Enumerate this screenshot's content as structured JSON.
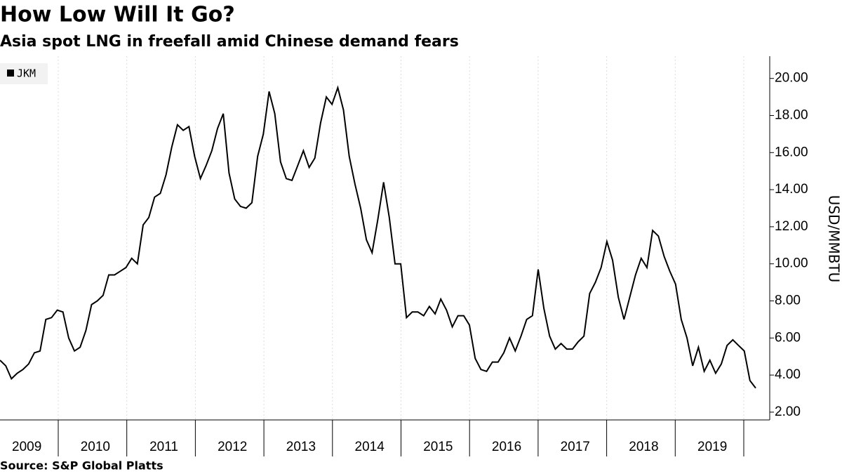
{
  "chart_data": {
    "type": "line",
    "title": "How Low Will It Go?",
    "subtitle": "Asia spot LNG in freefall amid Chinese demand fears",
    "source": "Source: S&P Global Platts",
    "y_label": "USD/MMBTU",
    "x_labels": [
      "2009",
      "2010",
      "2011",
      "2012",
      "2013",
      "2014",
      "2015",
      "2016",
      "2017",
      "2018",
      "2019"
    ],
    "series": [
      {
        "name": "JKM",
        "color": "#000000",
        "values": [
          4.8,
          4.5,
          3.8,
          4.1,
          4.3,
          4.6,
          5.2,
          5.3,
          7.0,
          7.1,
          7.5,
          7.4,
          6.0,
          5.3,
          5.5,
          6.4,
          7.8,
          8.0,
          8.3,
          9.4,
          9.4,
          9.6,
          9.8,
          10.3,
          10.0,
          12.1,
          12.5,
          13.6,
          13.8,
          14.8,
          16.3,
          17.5,
          17.2,
          17.4,
          15.8,
          14.6,
          15.3,
          16.1,
          17.3,
          18.1,
          14.9,
          13.5,
          13.1,
          13.0,
          13.3,
          15.8,
          17.0,
          19.3,
          18.1,
          15.5,
          14.6,
          14.5,
          15.3,
          16.1,
          15.2,
          15.7,
          17.6,
          19.0,
          18.6,
          19.5,
          18.3,
          15.8,
          14.3,
          13.0,
          11.3,
          10.6,
          12.4,
          14.4,
          12.5,
          10.0,
          10.0,
          7.1,
          7.4,
          7.4,
          7.2,
          7.7,
          7.3,
          8.1,
          7.5,
          6.6,
          7.2,
          7.2,
          6.7,
          4.9,
          4.3,
          4.2,
          4.7,
          4.7,
          5.2,
          6.0,
          5.3,
          6.1,
          7.0,
          7.2,
          9.7,
          7.6,
          6.1,
          5.4,
          5.7,
          5.4,
          5.4,
          5.8,
          6.1,
          8.4,
          9.0,
          9.8,
          11.2,
          10.2,
          8.2,
          7.0,
          8.2,
          9.4,
          10.3,
          9.8,
          11.8,
          11.5,
          10.4,
          9.6,
          8.9,
          7.0,
          6.0,
          4.5,
          5.5,
          4.2,
          4.8,
          4.1,
          4.6,
          5.6,
          5.9,
          5.6,
          5.3,
          3.7,
          3.3
        ]
      }
    ],
    "ylim": [
      1.58,
      21.2
    ],
    "yticks": [
      {
        "value": 2,
        "label": "2.00"
      },
      {
        "value": 4,
        "label": "4.00"
      },
      {
        "value": 6,
        "label": "6.00"
      },
      {
        "value": 8,
        "label": "8.00"
      },
      {
        "value": 10,
        "label": "10.00"
      },
      {
        "value": 12,
        "label": "12.00"
      },
      {
        "value": 14,
        "label": "14.00"
      },
      {
        "value": 16,
        "label": "16.00"
      },
      {
        "value": 18,
        "label": "18.00"
      },
      {
        "value": 20,
        "label": "20.00"
      }
    ],
    "grid": true,
    "legend": "top-left"
  }
}
